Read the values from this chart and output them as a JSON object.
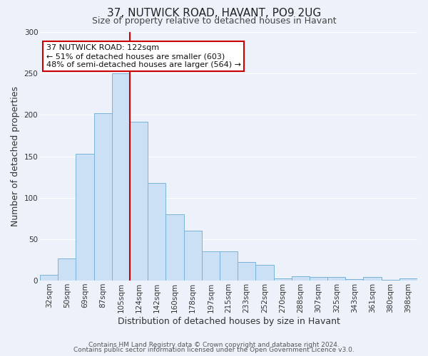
{
  "title": "37, NUTWICK ROAD, HAVANT, PO9 2UG",
  "subtitle": "Size of property relative to detached houses in Havant",
  "xlabel": "Distribution of detached houses by size in Havant",
  "ylabel": "Number of detached properties",
  "bar_labels": [
    "32sqm",
    "50sqm",
    "69sqm",
    "87sqm",
    "105sqm",
    "124sqm",
    "142sqm",
    "160sqm",
    "178sqm",
    "197sqm",
    "215sqm",
    "233sqm",
    "252sqm",
    "270sqm",
    "288sqm",
    "307sqm",
    "325sqm",
    "343sqm",
    "361sqm",
    "380sqm",
    "398sqm"
  ],
  "bar_values": [
    7,
    27,
    153,
    202,
    250,
    192,
    118,
    80,
    60,
    35,
    35,
    22,
    19,
    3,
    5,
    4,
    4,
    2,
    4,
    1,
    3
  ],
  "bar_color": "#cce0f5",
  "bar_edge_color": "#7ab4d8",
  "vline_x": 5,
  "vline_color": "#cc0000",
  "annotation_title": "37 NUTWICK ROAD: 122sqm",
  "annotation_line1": "← 51% of detached houses are smaller (603)",
  "annotation_line2": "48% of semi-detached houses are larger (564) →",
  "annotation_box_facecolor": "#ffffff",
  "annotation_box_edgecolor": "#cc0000",
  "ylim": [
    0,
    300
  ],
  "yticks": [
    0,
    50,
    100,
    150,
    200,
    250,
    300
  ],
  "footer1": "Contains HM Land Registry data © Crown copyright and database right 2024.",
  "footer2": "Contains public sector information licensed under the Open Government Licence v3.0.",
  "background_color": "#edf2fa",
  "grid_color": "#ffffff",
  "title_fontsize": 11,
  "subtitle_fontsize": 9,
  "axis_label_fontsize": 9,
  "tick_fontsize": 7.5,
  "annotation_fontsize": 8,
  "footer_fontsize": 6.5
}
